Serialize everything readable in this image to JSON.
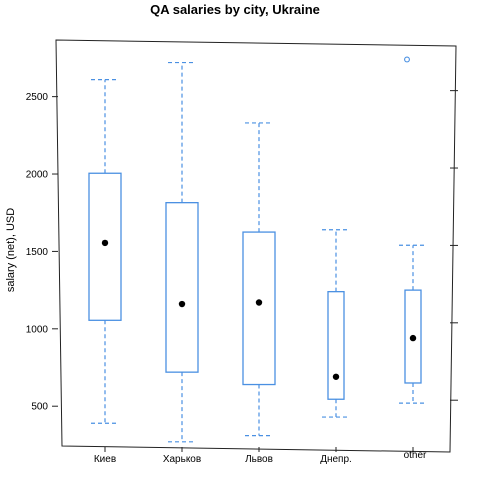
{
  "chart_data": {
    "type": "box",
    "title": "QA salaries by city, Ukraine",
    "xlabel": "",
    "ylabel": "salary (net), USD",
    "ylim": [
      230,
      2840
    ],
    "yticks": [
      500,
      1000,
      1500,
      2000,
      2500
    ],
    "grid": false,
    "colors": {
      "box": "#4a90e2",
      "median": "#000000",
      "outlier": "#4a90e2",
      "frame": "#222222"
    },
    "categories": [
      "Киев",
      "Харьков",
      "Львов",
      "Днепр.",
      "other"
    ],
    "series": [
      {
        "category": "Киев",
        "min": 390,
        "q1": 1055,
        "median": 1555,
        "q3": 2005,
        "max": 2610,
        "outliers": []
      },
      {
        "category": "Харьков",
        "min": 270,
        "q1": 720,
        "median": 1160,
        "q3": 1815,
        "max": 2720,
        "outliers": []
      },
      {
        "category": "Львов",
        "min": 310,
        "q1": 640,
        "median": 1170,
        "q3": 1625,
        "max": 2330,
        "outliers": []
      },
      {
        "category": "Днепр.",
        "min": 430,
        "q1": 545,
        "median": 690,
        "q3": 1240,
        "max": 1640,
        "outliers": []
      },
      {
        "category": "other",
        "min": 520,
        "q1": 650,
        "median": 940,
        "q3": 1250,
        "max": 1540,
        "outliers": [
          2740
        ]
      }
    ]
  }
}
